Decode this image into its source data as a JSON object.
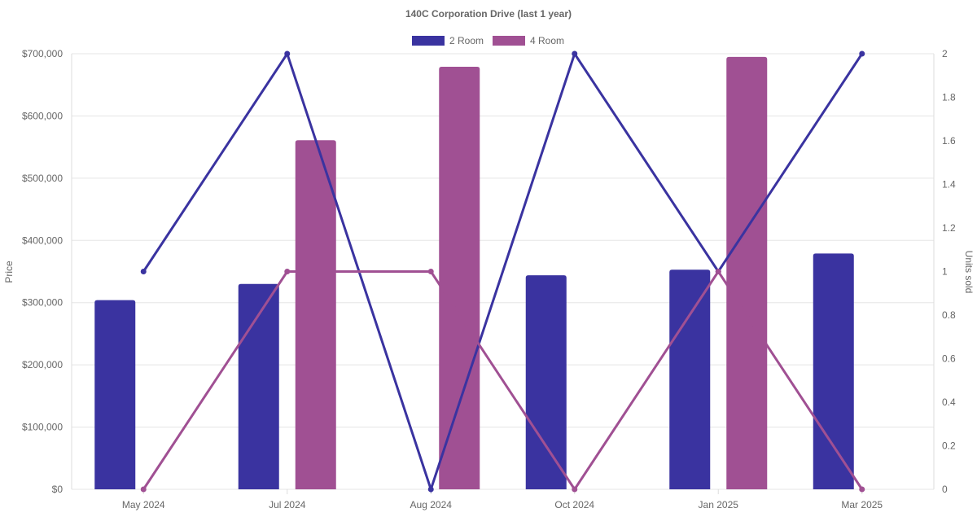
{
  "chart_data": {
    "type": "bar",
    "title": "140C Corporation Drive (last 1 year)",
    "categories": [
      "May 2024",
      "Jul 2024",
      "Aug 2024",
      "Oct 2024",
      "Jan 2025",
      "Mar 2025"
    ],
    "ylabel": "Price",
    "y2label": "Units sold",
    "ylim": [
      0,
      700000
    ],
    "y2lim": [
      0,
      2
    ],
    "yticks": [
      "$0",
      "$100,000",
      "$200,000",
      "$300,000",
      "$400,000",
      "$500,000",
      "$600,000",
      "$700,000"
    ],
    "y2ticks": [
      "0",
      "0.2",
      "0.4",
      "0.6",
      "0.8",
      "1",
      "1.2",
      "1.4",
      "1.6",
      "1.8",
      "2"
    ],
    "legend": [
      "2 Room",
      "4 Room"
    ],
    "legend_position": "top",
    "grid": true,
    "series": [
      {
        "name": "2 Room",
        "color": "#3a33a0",
        "price": [
          304000,
          330000,
          null,
          344000,
          353000,
          379000
        ],
        "units": [
          1,
          2,
          0,
          2,
          1,
          2
        ]
      },
      {
        "name": "4 Room",
        "color": "#a05093",
        "price": [
          null,
          561000,
          679000,
          null,
          695000,
          null
        ],
        "units": [
          0,
          1,
          1,
          0,
          1,
          0
        ]
      }
    ]
  }
}
